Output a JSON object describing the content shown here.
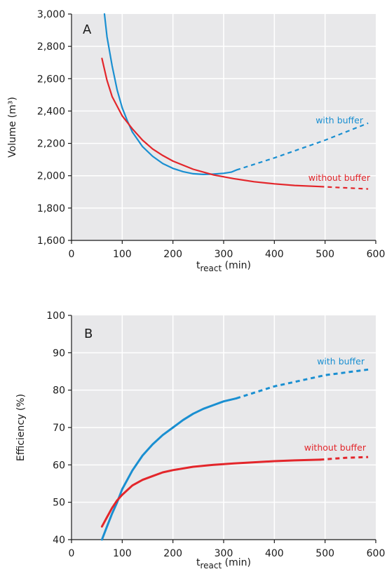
{
  "chart_data": [
    {
      "type": "line",
      "panel_label": "A",
      "xlabel_main": "t",
      "xlabel_sub": "react",
      "xlabel_unit": " (min)",
      "ylabel": "Volume (m³)",
      "xlim": [
        0,
        600
      ],
      "ylim": [
        1600,
        3000
      ],
      "x_ticks": [
        0,
        100,
        200,
        300,
        400,
        500,
        600
      ],
      "y_ticks": [
        1600,
        1800,
        2000,
        2200,
        2400,
        2600,
        2800,
        3000
      ],
      "grid": true,
      "series": [
        {
          "name": "with buffer",
          "color": "#1a8fd1",
          "solid": [
            [
              65,
              3000
            ],
            [
              70,
              2860
            ],
            [
              80,
              2680
            ],
            [
              90,
              2530
            ],
            [
              100,
              2420
            ],
            [
              110,
              2340
            ],
            [
              120,
              2270
            ],
            [
              140,
              2180
            ],
            [
              160,
              2120
            ],
            [
              180,
              2075
            ],
            [
              200,
              2045
            ],
            [
              220,
              2025
            ],
            [
              240,
              2012
            ],
            [
              260,
              2008
            ],
            [
              280,
              2010
            ],
            [
              300,
              2015
            ],
            [
              315,
              2022
            ],
            [
              325,
              2035
            ]
          ],
          "dashed": [
            [
              325,
              2035
            ],
            [
              400,
              2110
            ],
            [
              500,
              2220
            ],
            [
              585,
              2325
            ]
          ]
        },
        {
          "name": "without buffer",
          "color": "#e3262b",
          "solid": [
            [
              60,
              2725
            ],
            [
              70,
              2590
            ],
            [
              80,
              2490
            ],
            [
              100,
              2370
            ],
            [
              120,
              2290
            ],
            [
              140,
              2220
            ],
            [
              160,
              2165
            ],
            [
              180,
              2125
            ],
            [
              200,
              2090
            ],
            [
              240,
              2040
            ],
            [
              280,
              2005
            ],
            [
              320,
              1982
            ],
            [
              360,
              1963
            ],
            [
              400,
              1950
            ],
            [
              440,
              1940
            ],
            [
              490,
              1933
            ]
          ],
          "dashed": [
            [
              490,
              1933
            ],
            [
              540,
              1925
            ],
            [
              585,
              1918
            ]
          ]
        }
      ]
    },
    {
      "type": "line",
      "panel_label": "B",
      "xlabel_main": "t",
      "xlabel_sub": "react",
      "xlabel_unit": " (min)",
      "ylabel": "Efficiency (%)",
      "xlim": [
        0,
        600
      ],
      "ylim": [
        40,
        100
      ],
      "x_ticks": [
        0,
        100,
        200,
        300,
        400,
        500,
        600
      ],
      "y_ticks": [
        40,
        50,
        60,
        70,
        80,
        90,
        100
      ],
      "grid": true,
      "series": [
        {
          "name": "with buffer",
          "color": "#1a8fd1",
          "solid": [
            [
              60,
              40
            ],
            [
              70,
              43.5
            ],
            [
              80,
              47
            ],
            [
              90,
              50
            ],
            [
              100,
              53.5
            ],
            [
              120,
              58.5
            ],
            [
              140,
              62.5
            ],
            [
              160,
              65.5
            ],
            [
              180,
              68
            ],
            [
              200,
              70
            ],
            [
              220,
              72
            ],
            [
              240,
              73.7
            ],
            [
              260,
              75
            ],
            [
              280,
              76
            ],
            [
              300,
              77
            ],
            [
              325,
              77.8
            ]
          ],
          "dashed": [
            [
              325,
              77.8
            ],
            [
              400,
              81
            ],
            [
              500,
              84
            ],
            [
              585,
              85.5
            ]
          ]
        },
        {
          "name": "without buffer",
          "color": "#e3262b",
          "solid": [
            [
              60,
              43.5
            ],
            [
              70,
              46
            ],
            [
              80,
              48.5
            ],
            [
              90,
              50.5
            ],
            [
              100,
              52
            ],
            [
              120,
              54.5
            ],
            [
              140,
              56
            ],
            [
              160,
              57
            ],
            [
              180,
              58
            ],
            [
              200,
              58.6
            ],
            [
              240,
              59.5
            ],
            [
              280,
              60
            ],
            [
              320,
              60.4
            ],
            [
              360,
              60.7
            ],
            [
              400,
              61
            ],
            [
              440,
              61.2
            ],
            [
              490,
              61.4
            ]
          ],
          "dashed": [
            [
              490,
              61.4
            ],
            [
              540,
              61.9
            ],
            [
              585,
              62.1
            ]
          ]
        }
      ]
    }
  ],
  "colors": {
    "plot_background": "#e8e8ea",
    "grid": "#ffffff",
    "axis": "#1a1a1a"
  }
}
